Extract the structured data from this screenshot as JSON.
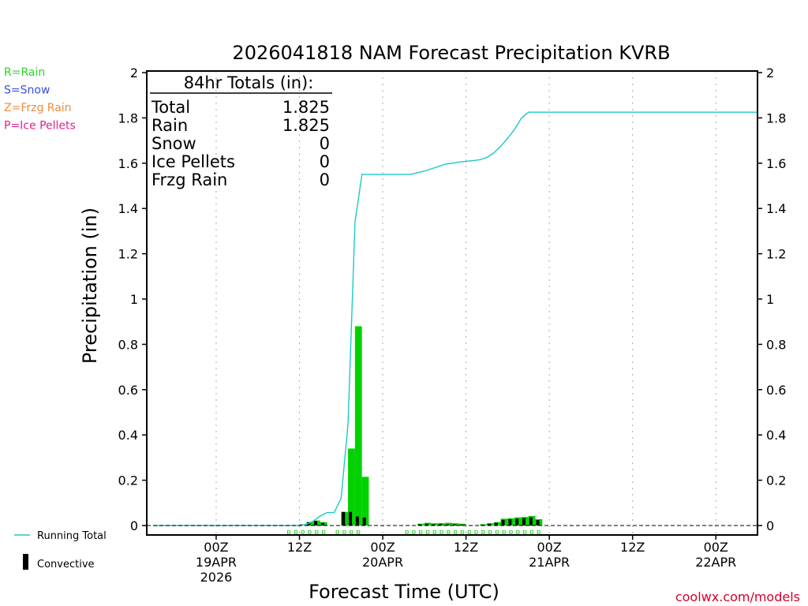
{
  "chart_data": {
    "type": "bar",
    "title": "2026041818 NAM Forecast Precipitation KVRB",
    "xlabel": "Forecast Time (UTC)",
    "ylabel": "Precipitation (in)",
    "ylim": [
      0,
      2
    ],
    "y_ticks": [
      0,
      0.2,
      0.4,
      0.6,
      0.8,
      1,
      1.2,
      1.4,
      1.6,
      1.8,
      2
    ],
    "y_tick_labels": [
      "0",
      "0.2",
      "0.4",
      "0.6",
      "0.8",
      "1",
      "1.2",
      "1.4",
      "1.6",
      "1.8",
      "2"
    ],
    "x_range_hours": [
      -4,
      84
    ],
    "x_ticks": [
      {
        "hour": 6,
        "lines": [
          "00Z",
          "19APR",
          "2026"
        ]
      },
      {
        "hour": 18,
        "lines": [
          "12Z"
        ]
      },
      {
        "hour": 30,
        "lines": [
          "00Z",
          "20APR"
        ]
      },
      {
        "hour": 42,
        "lines": [
          "12Z"
        ]
      },
      {
        "hour": 54,
        "lines": [
          "00Z",
          "21APR"
        ]
      },
      {
        "hour": 66,
        "lines": [
          "12Z"
        ]
      },
      {
        "hour": 78,
        "lines": [
          "00Z",
          "22APR"
        ]
      }
    ],
    "grid": true,
    "series": [
      {
        "name": "Rain",
        "values": [
          [
            19,
            0.005
          ],
          [
            20,
            0.015
          ],
          [
            21,
            0.022
          ],
          [
            22,
            0.015
          ],
          [
            25,
            0.06
          ],
          [
            26,
            0.34
          ],
          [
            27,
            0.88
          ],
          [
            28,
            0.215
          ],
          [
            36,
            0.008
          ],
          [
            37,
            0.012
          ],
          [
            38,
            0.01
          ],
          [
            39,
            0.01
          ],
          [
            40,
            0.012
          ],
          [
            41,
            0.01
          ],
          [
            42,
            0.008
          ],
          [
            45,
            0.005
          ],
          [
            46,
            0.01
          ],
          [
            47,
            0.015
          ],
          [
            48,
            0.03
          ],
          [
            49,
            0.032
          ],
          [
            50,
            0.036
          ],
          [
            51,
            0.038
          ],
          [
            52,
            0.042
          ],
          [
            53,
            0.028
          ]
        ]
      },
      {
        "name": "Convective",
        "values": [
          [
            19,
            0.005
          ],
          [
            20,
            0.015
          ],
          [
            21,
            0.02
          ],
          [
            22,
            0.012
          ],
          [
            25,
            0.06
          ],
          [
            26,
            0.06
          ],
          [
            27,
            0.04
          ],
          [
            28,
            0.035
          ],
          [
            36,
            0.005
          ],
          [
            37,
            0.008
          ],
          [
            38,
            0.005
          ],
          [
            39,
            0.008
          ],
          [
            40,
            0.005
          ],
          [
            41,
            0.005
          ],
          [
            42,
            0.004
          ],
          [
            45,
            0.004
          ],
          [
            46,
            0.008
          ],
          [
            47,
            0.012
          ],
          [
            48,
            0.025
          ],
          [
            49,
            0.028
          ],
          [
            50,
            0.03
          ],
          [
            51,
            0.032
          ],
          [
            52,
            0.036
          ],
          [
            53,
            0.024
          ]
        ]
      },
      {
        "name": "Running Total",
        "values": [
          [
            -3,
            0
          ],
          [
            18,
            0
          ],
          [
            19,
            0.005
          ],
          [
            20,
            0.02
          ],
          [
            21,
            0.042
          ],
          [
            22,
            0.057
          ],
          [
            23,
            0.057
          ],
          [
            24,
            0.12
          ],
          [
            25,
            0.45
          ],
          [
            26,
            1.34
          ],
          [
            27,
            1.55
          ],
          [
            28,
            1.55
          ],
          [
            33,
            1.55
          ],
          [
            34,
            1.55
          ],
          [
            36,
            1.565
          ],
          [
            37,
            1.575
          ],
          [
            38,
            1.585
          ],
          [
            39,
            1.595
          ],
          [
            40,
            1.6
          ],
          [
            41,
            1.605
          ],
          [
            42,
            1.608
          ],
          [
            43,
            1.611
          ],
          [
            44,
            1.615
          ],
          [
            45,
            1.625
          ],
          [
            46,
            1.645
          ],
          [
            47,
            1.675
          ],
          [
            48,
            1.71
          ],
          [
            49,
            1.75
          ],
          [
            50,
            1.8
          ],
          [
            51,
            1.825
          ],
          [
            84,
            1.825
          ]
        ]
      }
    ],
    "precip_type_marks": {
      "label": "R",
      "hours": [
        17,
        18,
        19,
        20,
        21,
        22,
        24,
        25,
        26,
        27,
        34,
        35,
        36,
        37,
        38,
        39,
        40,
        41,
        42,
        43,
        44,
        45,
        46,
        47,
        48,
        49,
        50,
        51,
        52,
        53
      ]
    },
    "totals_box": {
      "heading": "84hr Totals (in):",
      "rows": [
        {
          "label": "Total",
          "value": "1.825"
        },
        {
          "label": "Rain",
          "value": "1.825"
        },
        {
          "label": "Snow",
          "value": "0"
        },
        {
          "label": "Ice Pellets",
          "value": "0"
        },
        {
          "label": "Frzg Rain",
          "value": "0"
        }
      ]
    },
    "precip_type_key": [
      {
        "text": "R=Rain",
        "color": "#2bd12b"
      },
      {
        "text": "S=Snow",
        "color": "#3a4fe0"
      },
      {
        "text": "Z=Frzg Rain",
        "color": "#f08a3a"
      },
      {
        "text": "P=Ice Pellets",
        "color": "#e0228a"
      }
    ],
    "legend": [
      {
        "text": "Running Total",
        "color": "#1ec8c8"
      },
      {
        "text": "Convective",
        "color": "#000000"
      }
    ],
    "colors": {
      "rain": "#00d200",
      "convective": "#000000",
      "running_total": "#1ec8c8",
      "grid": "#aaaaaa"
    },
    "credit": "coolwx.com/models"
  }
}
